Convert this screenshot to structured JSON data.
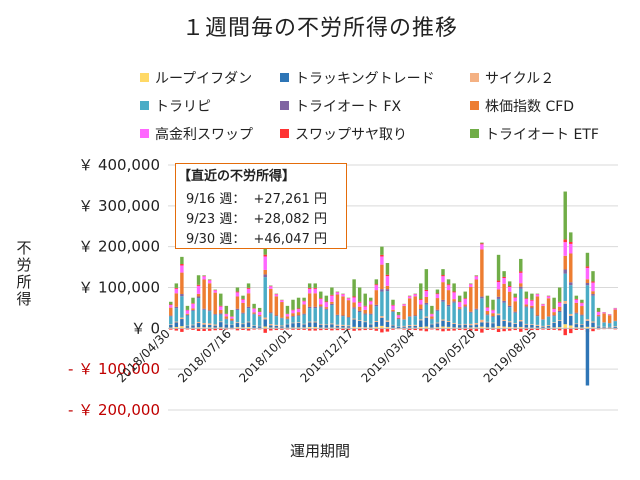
{
  "chart_data": {
    "type": "bar",
    "stacked": true,
    "title": "１週間毎の不労所得の推移",
    "xlabel": "運用期間",
    "ylabel": "不労所得",
    "ylim": [
      -200000,
      400000
    ],
    "y_ticks": [
      {
        "value": 400000,
        "label": "￥ 400,000"
      },
      {
        "value": 300000,
        "label": "￥ 300,000"
      },
      {
        "value": 200000,
        "label": "￥ 200,000"
      },
      {
        "value": 100000,
        "label": "￥ 100,000"
      },
      {
        "value": 0,
        "label": "￥ 0"
      },
      {
        "value": -100000,
        "label": "- ￥ 100,000"
      },
      {
        "value": -200000,
        "label": "- ￥ 200,000"
      }
    ],
    "x_tick_labels": [
      {
        "index": 0,
        "label": "2018/04/30"
      },
      {
        "index": 11,
        "label": "2018/07/16"
      },
      {
        "index": 22,
        "label": "2018/10/01"
      },
      {
        "index": 33,
        "label": "2018/12/17"
      },
      {
        "index": 44,
        "label": "2019/03/04"
      },
      {
        "index": 55,
        "label": "2019/05/20"
      },
      {
        "index": 66,
        "label": "2019/08/05"
      }
    ],
    "legend_position": "top",
    "series": [
      {
        "name": "ループイフダン",
        "color": "#ffd966"
      },
      {
        "name": "トラッキングトレード",
        "color": "#2e75b6"
      },
      {
        "name": "サイクル２",
        "color": "#f4b183"
      },
      {
        "name": "トラリピ",
        "color": "#4bacc6"
      },
      {
        "name": "トライオート FX",
        "color": "#8064a2"
      },
      {
        "name": "株価指数 CFD",
        "color": "#ed7d31"
      },
      {
        "name": "高金利スワップ",
        "color": "#ff66ff"
      },
      {
        "name": "スワップサヤ取り",
        "color": "#ff3333"
      },
      {
        "name": "トライオート ETF",
        "color": "#70ad47"
      }
    ],
    "totals": [
      65000,
      110000,
      175000,
      55000,
      75000,
      130000,
      130000,
      120000,
      95000,
      85000,
      55000,
      45000,
      100000,
      80000,
      110000,
      60000,
      50000,
      220000,
      105000,
      85000,
      70000,
      55000,
      70000,
      75000,
      75000,
      110000,
      110000,
      90000,
      80000,
      100000,
      90000,
      85000,
      75000,
      120000,
      100000,
      85000,
      75000,
      120000,
      200000,
      160000,
      70000,
      40000,
      60000,
      80000,
      85000,
      110000,
      145000,
      55000,
      95000,
      145000,
      120000,
      110000,
      80000,
      90000,
      110000,
      130000,
      210000,
      80000,
      70000,
      180000,
      140000,
      115000,
      85000,
      170000,
      90000,
      85000,
      85000,
      60000,
      80000,
      75000,
      100000,
      335000,
      235000,
      80000,
      70000,
      185000,
      140000,
      50000,
      40000,
      35000,
      50000
    ],
    "negatives": [
      {
        "index": 75,
        "value": -140000
      }
    ],
    "callout": {
      "title": "【直近の不労所得】",
      "rows": [
        {
          "week": "9/16 週：",
          "value": "+27,261 円"
        },
        {
          "week": "9/23 週：",
          "value": "+28,082 円"
        },
        {
          "week": "9/30 週：",
          "value": "+46,047 円"
        }
      ]
    }
  }
}
